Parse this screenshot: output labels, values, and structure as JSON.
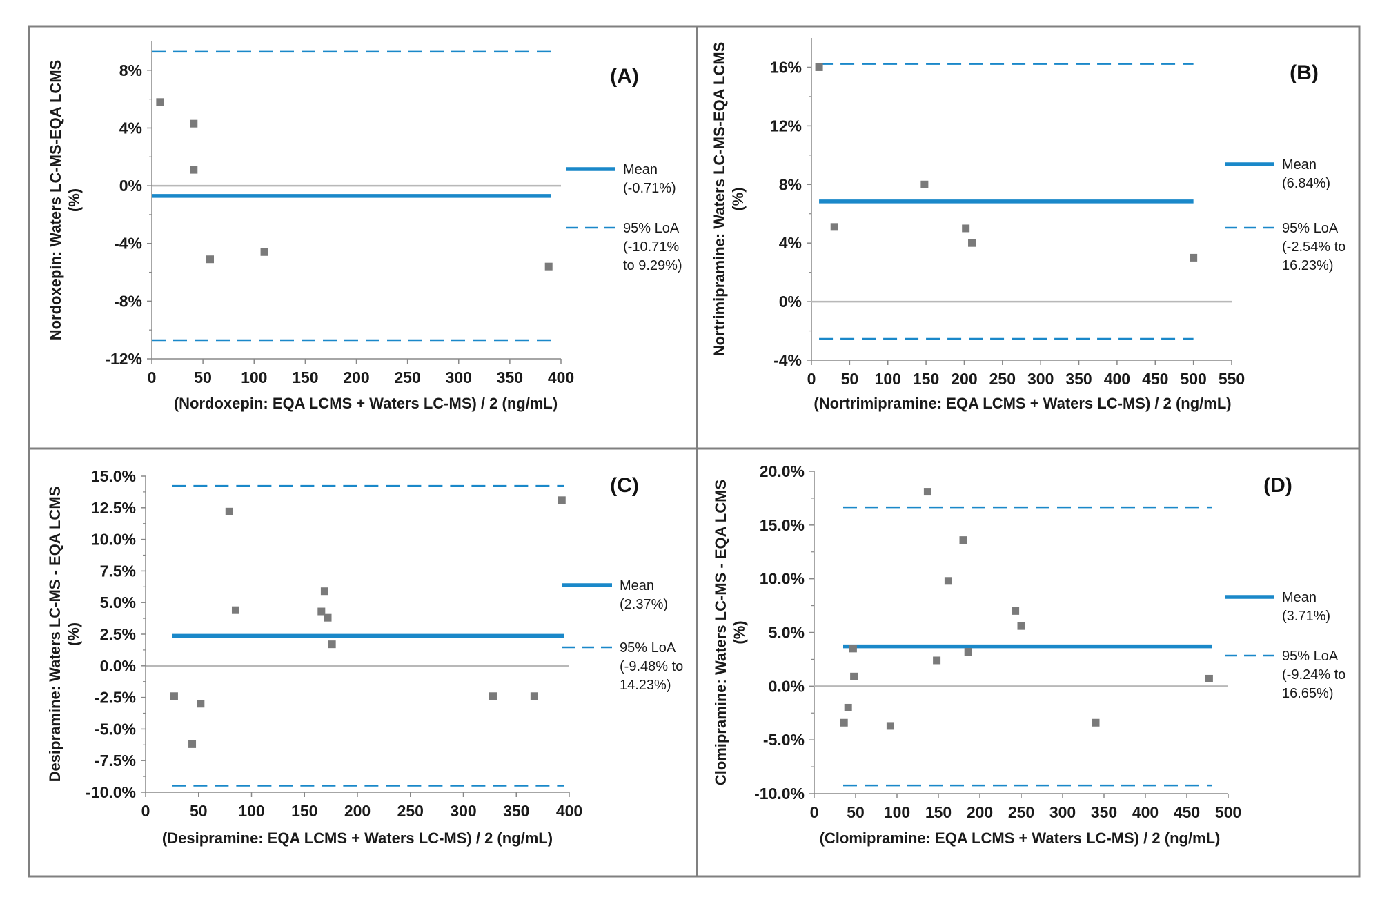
{
  "chart_data": [
    {
      "type": "scatter",
      "panel_label": "(A)",
      "xlabel": "(Nordoxepin: EQA LCMS + Waters LC-MS) / 2 (ng/mL)",
      "ylabel_lines": [
        "Nordoxepin: Waters LC-MS-EQA LCMS",
        "(%)"
      ],
      "xlim": [
        0,
        400
      ],
      "ylim": [
        -12,
        10
      ],
      "x_ticks": [
        0,
        50,
        100,
        150,
        200,
        250,
        300,
        350,
        400
      ],
      "y_ticks": [
        -12,
        -8,
        -4,
        0,
        4,
        8
      ],
      "y_tick_labels": [
        "-12%",
        "-8%",
        "-4%",
        "0%",
        "4%",
        "8%"
      ],
      "points": [
        [
          8,
          5.8
        ],
        [
          41,
          4.3
        ],
        [
          41,
          1.1
        ],
        [
          57,
          -5.1
        ],
        [
          110,
          -4.6
        ],
        [
          388,
          -5.6
        ]
      ],
      "mean": -0.71,
      "loa_lower": -10.71,
      "loa_upper": 9.29,
      "line_span": [
        0,
        390
      ],
      "legend": {
        "mean_label": "Mean",
        "mean_value": "(-0.71%)",
        "loa_label": "95% LoA",
        "loa_line1": "(-10.71%",
        "loa_line2": "to 9.29%)"
      }
    },
    {
      "type": "scatter",
      "panel_label": "(B)",
      "xlabel": "(Nortrimipramine: EQA LCMS + Waters LC-MS) / 2 (ng/mL)",
      "ylabel_lines": [
        "Nortrimipramine: Waters LC-MS-EQA LCMS",
        "(%)"
      ],
      "xlim": [
        0,
        550
      ],
      "ylim": [
        -4,
        18
      ],
      "x_ticks": [
        0,
        50,
        100,
        150,
        200,
        250,
        300,
        350,
        400,
        450,
        500,
        550
      ],
      "y_ticks": [
        -4,
        0,
        4,
        8,
        12,
        16
      ],
      "y_tick_labels": [
        "-4%",
        "0%",
        "4%",
        "8%",
        "12%",
        "16%"
      ],
      "points": [
        [
          10,
          16.0
        ],
        [
          30,
          5.1
        ],
        [
          148,
          8.0
        ],
        [
          202,
          5.0
        ],
        [
          210,
          4.0
        ],
        [
          500,
          3.0
        ]
      ],
      "mean": 6.84,
      "loa_lower": -2.54,
      "loa_upper": 16.23,
      "line_span": [
        10,
        500
      ],
      "legend": {
        "mean_label": "Mean",
        "mean_value": "(6.84%)",
        "loa_label": "95% LoA",
        "loa_line1": "(-2.54% to",
        "loa_line2": "16.23%)"
      }
    },
    {
      "type": "scatter",
      "panel_label": "(C)",
      "xlabel": "(Desipramine: EQA LCMS + Waters LC-MS) / 2 (ng/mL)",
      "ylabel_lines": [
        "Desipramine: Waters LC-MS - EQA LCMS",
        "(%)"
      ],
      "xlim": [
        0,
        400
      ],
      "ylim": [
        -10,
        15
      ],
      "x_ticks": [
        0,
        50,
        100,
        150,
        200,
        250,
        300,
        350,
        400
      ],
      "y_ticks": [
        -10,
        -7.5,
        -5,
        -2.5,
        0,
        2.5,
        5,
        7.5,
        10,
        12.5,
        15
      ],
      "y_tick_labels": [
        "-10.0%",
        "-7.5%",
        "-5.0%",
        "-2.5%",
        "0.0%",
        "2.5%",
        "5.0%",
        "7.5%",
        "10.0%",
        "12.5%",
        "15.0%"
      ],
      "points": [
        [
          27,
          -2.4
        ],
        [
          44,
          -6.2
        ],
        [
          52,
          -3.0
        ],
        [
          79,
          12.2
        ],
        [
          85,
          4.4
        ],
        [
          166,
          4.3
        ],
        [
          169,
          5.9
        ],
        [
          172,
          3.8
        ],
        [
          176,
          1.7
        ],
        [
          328,
          -2.4
        ],
        [
          367,
          -2.4
        ],
        [
          393,
          13.1
        ]
      ],
      "mean": 2.37,
      "loa_lower": -9.48,
      "loa_upper": 14.23,
      "line_span": [
        25,
        395
      ],
      "legend": {
        "mean_label": "Mean",
        "mean_value": "(2.37%)",
        "loa_label": "95% LoA",
        "loa_line1": "(-9.48% to",
        "loa_line2": "14.23%)"
      }
    },
    {
      "type": "scatter",
      "panel_label": "(D)",
      "xlabel": "(Clomipramine: EQA LCMS + Waters LC-MS) / 2 (ng/mL)",
      "ylabel_lines": [
        "Clomipramine: Waters LC-MS - EQA LCMS",
        "(%)"
      ],
      "xlim": [
        0,
        500
      ],
      "ylim": [
        -10,
        20
      ],
      "x_ticks": [
        0,
        50,
        100,
        150,
        200,
        250,
        300,
        350,
        400,
        450,
        500
      ],
      "y_ticks": [
        -10,
        -5,
        0,
        5,
        10,
        15,
        20
      ],
      "y_tick_labels": [
        "-10.0%",
        "-5.0%",
        "0.0%",
        "5.0%",
        "10.0%",
        "15.0%",
        "20.0%"
      ],
      "points": [
        [
          36,
          -3.4
        ],
        [
          41,
          -2.0
        ],
        [
          47,
          3.5
        ],
        [
          48,
          0.9
        ],
        [
          92,
          -3.7
        ],
        [
          137,
          18.1
        ],
        [
          148,
          2.4
        ],
        [
          162,
          9.8
        ],
        [
          180,
          13.6
        ],
        [
          186,
          3.2
        ],
        [
          243,
          7.0
        ],
        [
          250,
          5.6
        ],
        [
          340,
          -3.4
        ],
        [
          477,
          0.7
        ]
      ],
      "mean": 3.71,
      "loa_lower": -9.24,
      "loa_upper": 16.65,
      "line_span": [
        35,
        480
      ],
      "legend": {
        "mean_label": "Mean",
        "mean_value": "(3.71%)",
        "loa_label": "95% LoA",
        "loa_line1": "(-9.24% to",
        "loa_line2": "16.65%)"
      }
    }
  ],
  "colors": {
    "mean_line": "#1a88c9",
    "loa_line": "#1a88c9",
    "point": "#7a7a7a",
    "axis": "#888888",
    "zero_line": "#b8b8b8",
    "border": "#808080"
  }
}
